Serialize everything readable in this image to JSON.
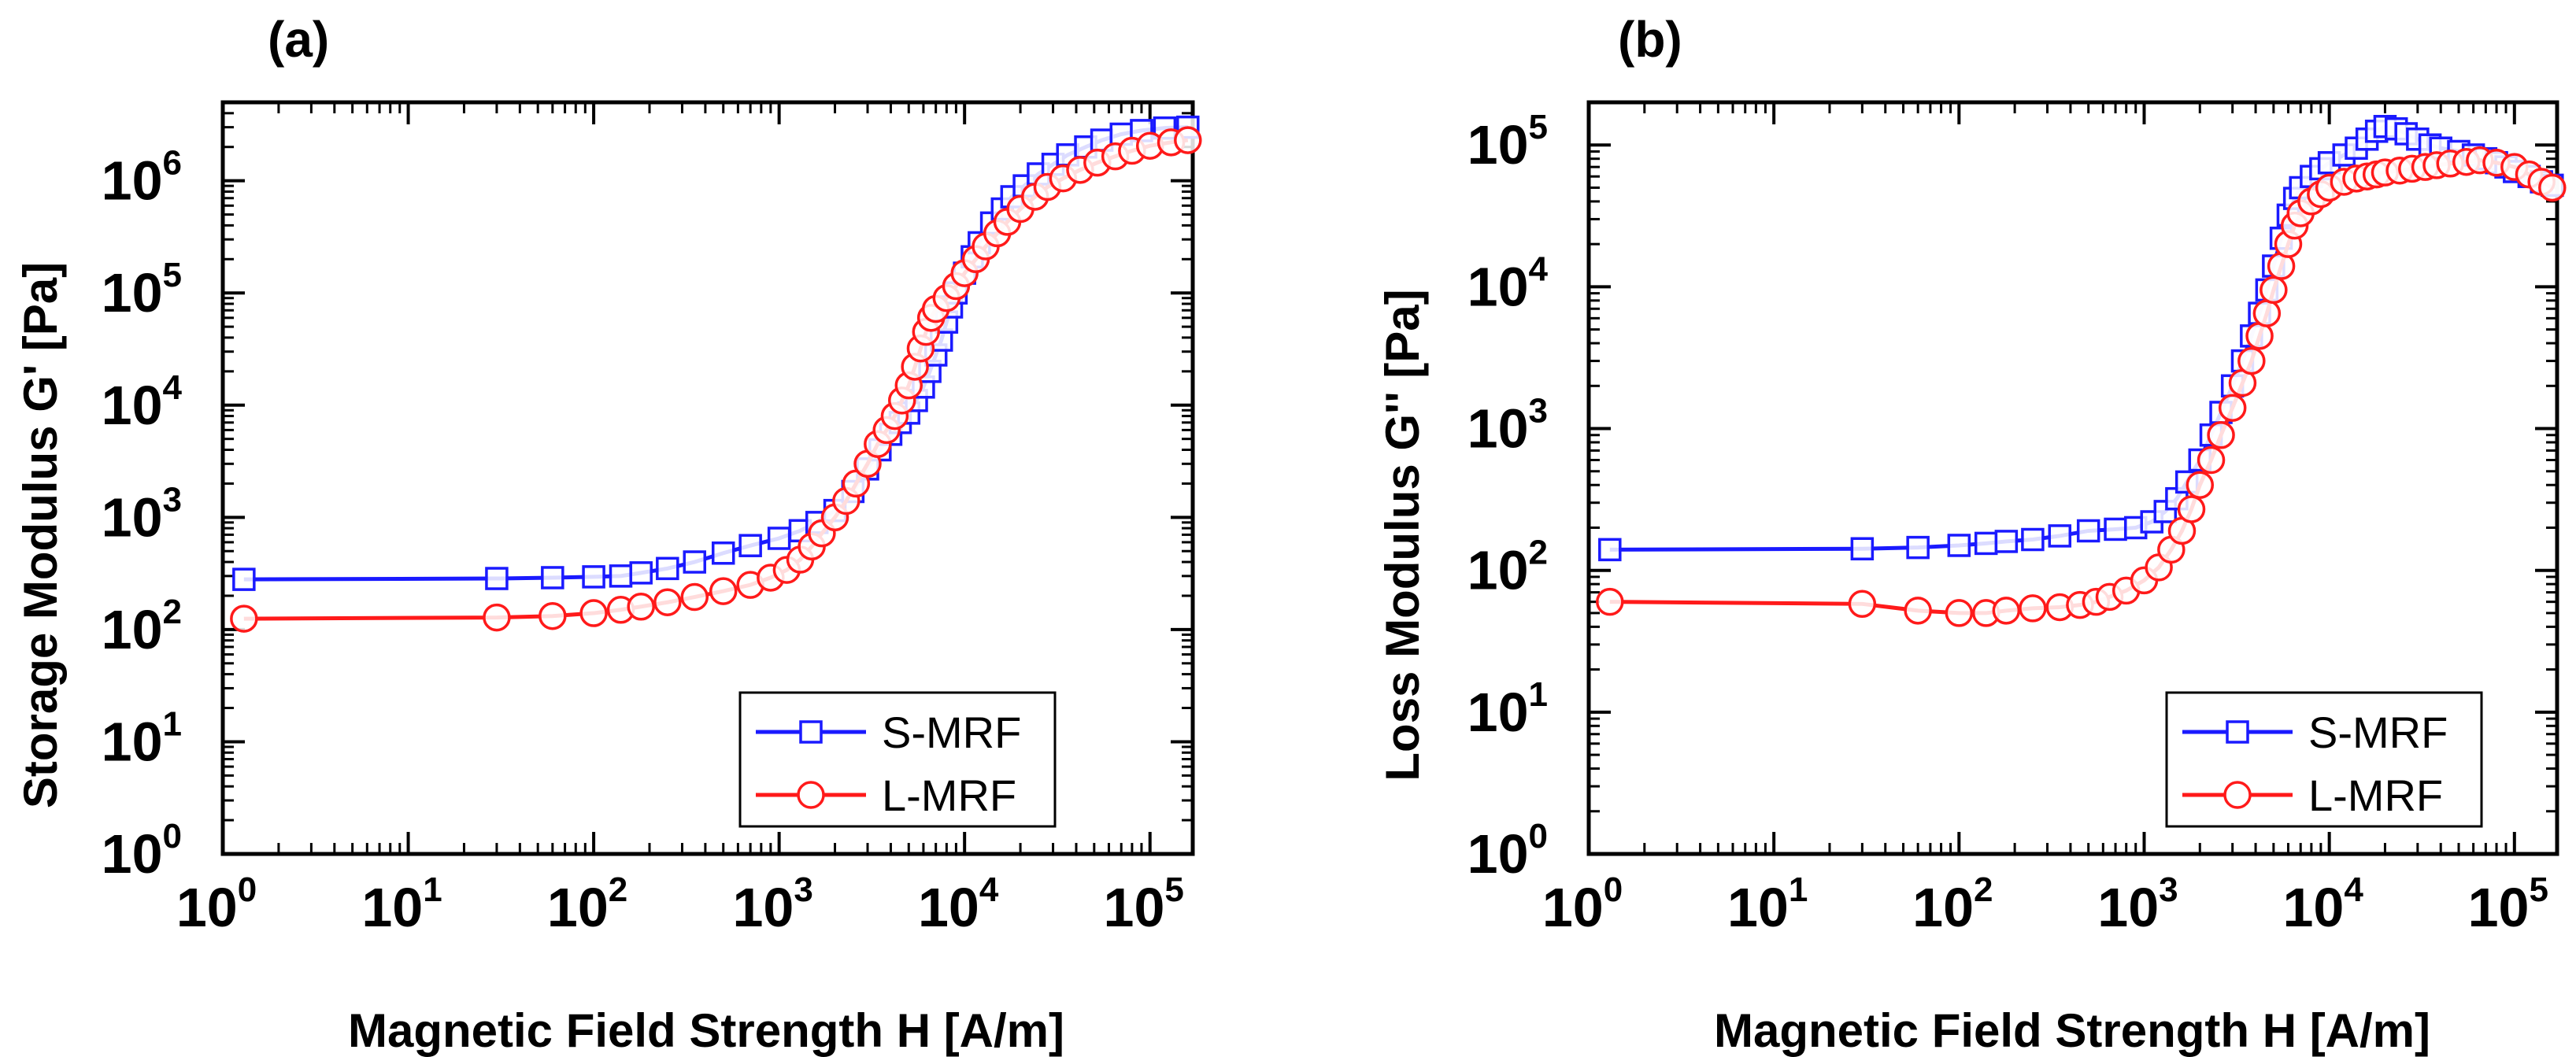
{
  "chart_data": [
    {
      "panel": "(a)",
      "type": "line",
      "xscale": "log",
      "yscale": "log",
      "xlabel": "Magnetic Field Strength H [A/m]",
      "ylabel": "Storage Modulus G' [Pa]",
      "xlim": [
        1,
        170000
      ],
      "ylim": [
        1,
        5000000
      ],
      "xticks": [
        {
          "base": "10",
          "exp": "0",
          "value": 1
        },
        {
          "base": "10",
          "exp": "1",
          "value": 10
        },
        {
          "base": "10",
          "exp": "2",
          "value": 100
        },
        {
          "base": "10",
          "exp": "3",
          "value": 1000
        },
        {
          "base": "10",
          "exp": "4",
          "value": 10000
        },
        {
          "base": "10",
          "exp": "5",
          "value": 100000
        }
      ],
      "yticks": [
        {
          "base": "10",
          "exp": "0",
          "value": 1
        },
        {
          "base": "10",
          "exp": "1",
          "value": 10
        },
        {
          "base": "10",
          "exp": "2",
          "value": 100
        },
        {
          "base": "10",
          "exp": "3",
          "value": 1000
        },
        {
          "base": "10",
          "exp": "4",
          "value": 10000
        },
        {
          "base": "10",
          "exp": "5",
          "value": 100000
        },
        {
          "base": "10",
          "exp": "6",
          "value": 1000000
        }
      ],
      "legend_position": "bottom-right",
      "series": [
        {
          "name": "S-MRF",
          "color": "#1a1aff",
          "marker": "square",
          "points": [
            [
              1.3,
              280
            ],
            [
              30,
              285
            ],
            [
              60,
              290
            ],
            [
              100,
              295
            ],
            [
              140,
              300
            ],
            [
              180,
              320
            ],
            [
              250,
              350
            ],
            [
              350,
              400
            ],
            [
              500,
              480
            ],
            [
              700,
              560
            ],
            [
              1000,
              650
            ],
            [
              1300,
              760
            ],
            [
              1600,
              900
            ],
            [
              2000,
              1150
            ],
            [
              2500,
              1700
            ],
            [
              3000,
              2700
            ],
            [
              3500,
              4000
            ],
            [
              4000,
              5500
            ],
            [
              4500,
              7000
            ],
            [
              5000,
              8500
            ],
            [
              5500,
              11000
            ],
            [
              6000,
              14500
            ],
            [
              6500,
              20000
            ],
            [
              7000,
              28000
            ],
            [
              7500,
              38000
            ],
            [
              8000,
              55000
            ],
            [
              8500,
              75000
            ],
            [
              9000,
              100000
            ],
            [
              10000,
              150000
            ],
            [
              11000,
              210000
            ],
            [
              12000,
              280000
            ],
            [
              14000,
              420000
            ],
            [
              16000,
              560000
            ],
            [
              18000,
              720000
            ],
            [
              21000,
              900000
            ],
            [
              25000,
              1150000
            ],
            [
              30000,
              1400000
            ],
            [
              36000,
              1700000
            ],
            [
              45000,
              2000000
            ],
            [
              55000,
              2300000
            ],
            [
              70000,
              2600000
            ],
            [
              90000,
              2800000
            ],
            [
              120000,
              2950000
            ],
            [
              160000,
              3000000
            ]
          ]
        },
        {
          "name": "L-MRF",
          "color": "#ff1a1a",
          "marker": "circle",
          "points": [
            [
              1.3,
              125
            ],
            [
              30,
              128
            ],
            [
              60,
              132
            ],
            [
              100,
              140
            ],
            [
              140,
              150
            ],
            [
              180,
              160
            ],
            [
              250,
              175
            ],
            [
              350,
              195
            ],
            [
              500,
              220
            ],
            [
              700,
              250
            ],
            [
              900,
              290
            ],
            [
              1100,
              340
            ],
            [
              1300,
              420
            ],
            [
              1500,
              550
            ],
            [
              1700,
              720
            ],
            [
              2000,
              1000
            ],
            [
              2300,
              1400
            ],
            [
              2600,
              2000
            ],
            [
              3000,
              3000
            ],
            [
              3400,
              4500
            ],
            [
              3800,
              6000
            ],
            [
              4200,
              8000
            ],
            [
              4600,
              11000
            ],
            [
              5000,
              15000
            ],
            [
              5400,
              22000
            ],
            [
              5800,
              32000
            ],
            [
              6200,
              45000
            ],
            [
              6600,
              60000
            ],
            [
              7000,
              72000
            ],
            [
              8000,
              90000
            ],
            [
              9000,
              115000
            ],
            [
              10000,
              150000
            ],
            [
              11500,
              200000
            ],
            [
              13000,
              260000
            ],
            [
              15000,
              340000
            ],
            [
              17000,
              430000
            ],
            [
              20000,
              560000
            ],
            [
              24000,
              720000
            ],
            [
              28000,
              880000
            ],
            [
              34000,
              1050000
            ],
            [
              42000,
              1250000
            ],
            [
              52000,
              1450000
            ],
            [
              65000,
              1650000
            ],
            [
              80000,
              1850000
            ],
            [
              100000,
              2050000
            ],
            [
              130000,
              2200000
            ],
            [
              160000,
              2300000
            ]
          ]
        }
      ]
    },
    {
      "panel": "(b)",
      "type": "line",
      "xscale": "log",
      "yscale": "log",
      "xlabel": "Magnetic Field Strength H [A/m]",
      "ylabel": "Loss Modulus G'' [Pa]",
      "xlim": [
        1,
        170000
      ],
      "ylim": [
        1,
        200000
      ],
      "xticks": [
        {
          "base": "10",
          "exp": "0",
          "value": 1
        },
        {
          "base": "10",
          "exp": "1",
          "value": 10
        },
        {
          "base": "10",
          "exp": "2",
          "value": 100
        },
        {
          "base": "10",
          "exp": "3",
          "value": 1000
        },
        {
          "base": "10",
          "exp": "4",
          "value": 10000
        },
        {
          "base": "10",
          "exp": "5",
          "value": 100000
        }
      ],
      "yticks": [
        {
          "base": "10",
          "exp": "0",
          "value": 1
        },
        {
          "base": "10",
          "exp": "1",
          "value": 10
        },
        {
          "base": "10",
          "exp": "2",
          "value": 100
        },
        {
          "base": "10",
          "exp": "3",
          "value": 1000
        },
        {
          "base": "10",
          "exp": "4",
          "value": 10000
        },
        {
          "base": "10",
          "exp": "5",
          "value": 100000
        }
      ],
      "legend_position": "bottom-right",
      "series": [
        {
          "name": "S-MRF",
          "color": "#1a1aff",
          "marker": "square",
          "points": [
            [
              1.3,
              140
            ],
            [
              30,
              142
            ],
            [
              60,
              145
            ],
            [
              100,
              150
            ],
            [
              140,
              155
            ],
            [
              180,
              160
            ],
            [
              250,
              165
            ],
            [
              350,
              175
            ],
            [
              500,
              190
            ],
            [
              700,
              195
            ],
            [
              900,
              200
            ],
            [
              1100,
              220
            ],
            [
              1300,
              260
            ],
            [
              1500,
              320
            ],
            [
              1700,
              420
            ],
            [
              2000,
              600
            ],
            [
              2300,
              900
            ],
            [
              2600,
              1300
            ],
            [
              3000,
              2000
            ],
            [
              3400,
              3000
            ],
            [
              3800,
              4500
            ],
            [
              4200,
              6500
            ],
            [
              4600,
              9500
            ],
            [
              5000,
              14000
            ],
            [
              5500,
              22000
            ],
            [
              6000,
              32000
            ],
            [
              6500,
              42000
            ],
            [
              7000,
              50000
            ],
            [
              8000,
              60000
            ],
            [
              9000,
              68000
            ],
            [
              10000,
              75000
            ],
            [
              12000,
              85000
            ],
            [
              14000,
              95000
            ],
            [
              16000,
              110000
            ],
            [
              18000,
              125000
            ],
            [
              20000,
              135000
            ],
            [
              23000,
              130000
            ],
            [
              26000,
              120000
            ],
            [
              30000,
              110000
            ],
            [
              35000,
              100000
            ],
            [
              40000,
              95000
            ],
            [
              50000,
              90000
            ],
            [
              60000,
              85000
            ],
            [
              70000,
              80000
            ],
            [
              80000,
              75000
            ],
            [
              90000,
              70000
            ],
            [
              100000,
              65000
            ],
            [
              120000,
              60000
            ],
            [
              140000,
              55000
            ],
            [
              160000,
              52000
            ]
          ]
        },
        {
          "name": "L-MRF",
          "color": "#ff1a1a",
          "marker": "circle",
          "points": [
            [
              1.3,
              60
            ],
            [
              30,
              58
            ],
            [
              60,
              52
            ],
            [
              100,
              50
            ],
            [
              140,
              50
            ],
            [
              180,
              52
            ],
            [
              250,
              54
            ],
            [
              350,
              55
            ],
            [
              450,
              57
            ],
            [
              550,
              60
            ],
            [
              650,
              65
            ],
            [
              800,
              72
            ],
            [
              1000,
              85
            ],
            [
              1200,
              105
            ],
            [
              1400,
              140
            ],
            [
              1600,
              190
            ],
            [
              1800,
              270
            ],
            [
              2000,
              400
            ],
            [
              2300,
              600
            ],
            [
              2600,
              900
            ],
            [
              3000,
              1400
            ],
            [
              3400,
              2100
            ],
            [
              3800,
              3000
            ],
            [
              4200,
              4500
            ],
            [
              4600,
              6500
            ],
            [
              5000,
              9500
            ],
            [
              5500,
              14000
            ],
            [
              6000,
              20000
            ],
            [
              6500,
              27000
            ],
            [
              7000,
              33000
            ],
            [
              8000,
              40000
            ],
            [
              9000,
              45000
            ],
            [
              10000,
              50000
            ],
            [
              12000,
              55000
            ],
            [
              14000,
              58000
            ],
            [
              16000,
              60000
            ],
            [
              18000,
              62000
            ],
            [
              20000,
              64000
            ],
            [
              24000,
              66000
            ],
            [
              28000,
              68000
            ],
            [
              33000,
              70000
            ],
            [
              38000,
              72000
            ],
            [
              45000,
              74000
            ],
            [
              55000,
              76000
            ],
            [
              65000,
              78000
            ],
            [
              80000,
              75000
            ],
            [
              100000,
              70000
            ],
            [
              120000,
              62000
            ],
            [
              140000,
              55000
            ],
            [
              160000,
              50000
            ]
          ]
        }
      ]
    }
  ]
}
